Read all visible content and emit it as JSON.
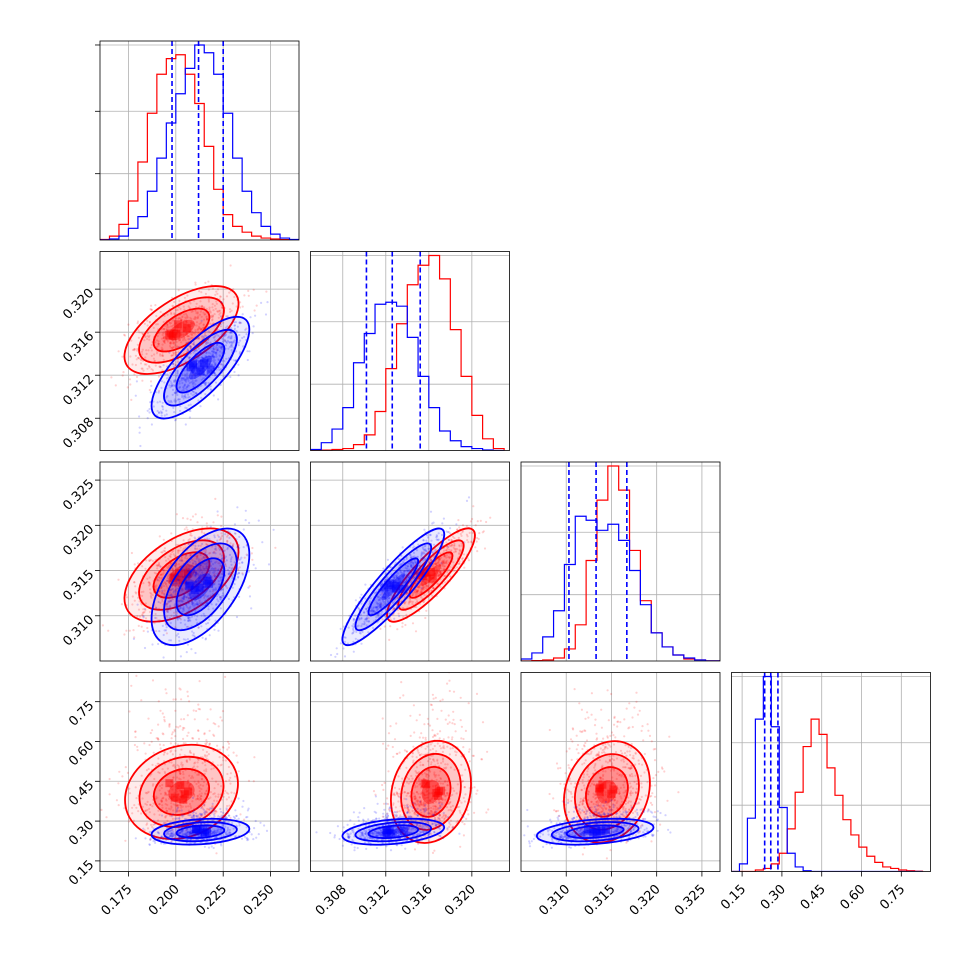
{
  "chart_data": {
    "type": "corner",
    "colors": {
      "red_series": "#ff0000",
      "blue_series": "#0000ff"
    },
    "grid": true,
    "legend": "none",
    "series": [
      {
        "color": "#ff0000",
        "means": [
          0.203,
          0.3162,
          0.3145,
          0.41
        ],
        "sigmas": [
          0.014,
          0.0019,
          0.0024,
          0.09
        ],
        "correlations": {
          "1-0": 0.6,
          "2-0": 0.5,
          "2-1": 0.85,
          "3-0": 0.1,
          "3-1": 0.1,
          "3-2": 0.1
        }
      },
      {
        "color": "#0000ff",
        "means": [
          0.213,
          0.3127,
          0.3132,
          0.26
        ],
        "sigmas": [
          0.012,
          0.0022,
          0.003,
          0.025
        ],
        "correlations": {
          "1-0": 0.75,
          "2-0": 0.55,
          "2-1": 0.9,
          "3-0": 0.2,
          "3-1": 0.3,
          "3-2": 0.3
        }
      }
    ],
    "quantile_lines": {
      "color": "#0000ff",
      "style": "dashed",
      "param0": [
        0.198,
        0.212,
        0.225
      ],
      "param1": [
        0.3102,
        0.3126,
        0.3152
      ],
      "param2": [
        0.3103,
        0.3133,
        0.3167
      ],
      "param3": [
        0.235,
        0.258,
        0.285
      ]
    },
    "ranges": [
      [
        0.16,
        0.265
      ],
      [
        0.305,
        0.3235
      ],
      [
        0.305,
        0.327
      ],
      [
        0.11,
        0.86
      ]
    ],
    "ticks": [
      [
        "0.175",
        "0.200",
        "0.225",
        "0.250"
      ],
      [
        "0.308",
        "0.312",
        "0.316",
        "0.320"
      ],
      [
        "0.310",
        "0.315",
        "0.320",
        "0.325"
      ],
      [
        "0.15",
        "0.30",
        "0.45",
        "0.60",
        "0.75"
      ]
    ],
    "histograms": {
      "param0": {
        "bin_edges": [
          0.16,
          0.165,
          0.17,
          0.175,
          0.18,
          0.185,
          0.19,
          0.195,
          0.2,
          0.205,
          0.21,
          0.215,
          0.22,
          0.225,
          0.23,
          0.235,
          0.24,
          0.245,
          0.25,
          0.255,
          0.26,
          0.265
        ],
        "red": [
          0.3,
          2,
          8,
          20,
          40,
          65,
          85,
          93,
          95,
          85,
          70,
          48,
          26,
          13,
          7,
          4,
          2,
          1,
          0.5,
          0.2,
          0.1
        ],
        "blue": [
          0.1,
          0.5,
          2,
          6,
          12,
          25,
          42,
          60,
          75,
          88,
          100,
          96,
          85,
          65,
          42,
          25,
          14,
          7,
          3,
          1,
          0.3
        ]
      },
      "param1": {
        "bin_edges": [
          0.305,
          0.306,
          0.307,
          0.308,
          0.309,
          0.31,
          0.311,
          0.312,
          0.313,
          0.314,
          0.315,
          0.316,
          0.317,
          0.318,
          0.319,
          0.32,
          0.321,
          0.322,
          0.323
        ],
        "red": [
          0,
          0.2,
          0.5,
          1,
          3,
          8,
          20,
          42,
          65,
          85,
          95,
          100,
          88,
          62,
          38,
          18,
          6,
          1
        ],
        "blue": [
          0.5,
          4,
          11,
          22,
          45,
          60,
          75,
          76,
          74,
          58,
          38,
          22,
          10,
          5,
          2,
          1,
          0.3,
          0
        ]
      },
      "param2": {
        "bin_edges": [
          0.305,
          0.3062,
          0.3074,
          0.3086,
          0.3098,
          0.311,
          0.3122,
          0.3134,
          0.3146,
          0.3158,
          0.317,
          0.3182,
          0.3194,
          0.3206,
          0.3218,
          0.323,
          0.3242,
          0.3254,
          0.327
        ],
        "red": [
          0,
          0.2,
          0.5,
          1.5,
          6,
          18,
          50,
          80,
          97,
          85,
          55,
          30,
          14,
          7,
          3,
          1,
          0.5,
          0.1
        ],
        "blue": [
          1,
          4,
          12,
          25,
          48,
          72,
          70,
          65,
          68,
          60,
          45,
          28,
          14,
          7,
          3,
          1.5,
          0.5,
          0.1
        ]
      },
      "param3": {
        "bin_edges": [
          0.11,
          0.14,
          0.17,
          0.2,
          0.23,
          0.26,
          0.29,
          0.32,
          0.35,
          0.38,
          0.41,
          0.44,
          0.47,
          0.5,
          0.53,
          0.56,
          0.59,
          0.62,
          0.65,
          0.68,
          0.71,
          0.74,
          0.77,
          0.8,
          0.83
        ],
        "red": [
          0,
          0,
          0,
          1,
          2,
          5,
          12,
          28,
          52,
          82,
          100,
          90,
          68,
          50,
          34,
          24,
          16,
          10,
          6,
          3,
          2,
          1,
          0.5,
          0.2
        ],
        "blue": [
          0,
          5,
          35,
          100,
          128,
          95,
          42,
          12,
          3,
          0.5,
          0,
          0,
          0,
          0,
          0,
          0,
          0,
          0,
          0,
          0,
          0,
          0,
          0,
          0
        ]
      }
    }
  }
}
